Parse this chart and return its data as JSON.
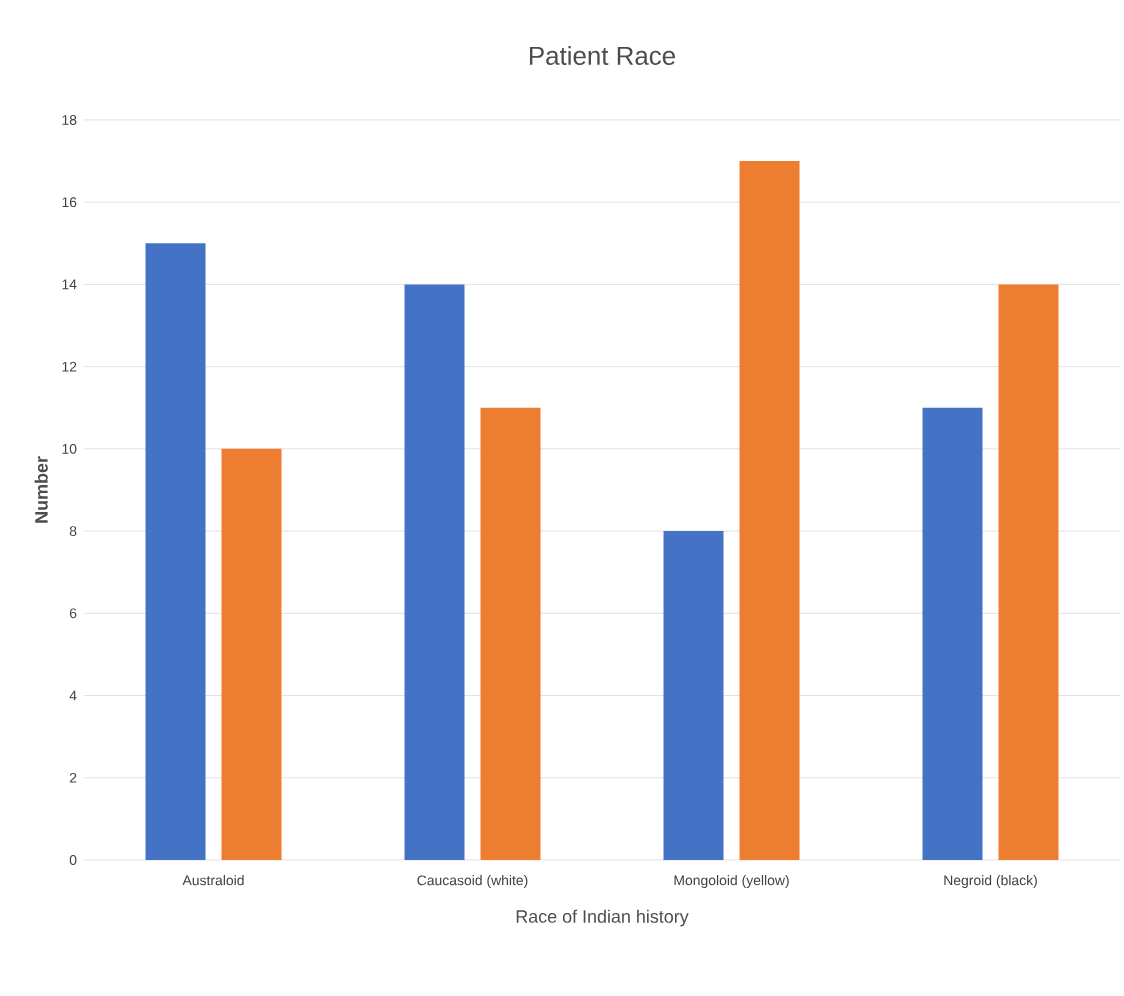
{
  "chart_data": {
    "type": "bar",
    "title": "Patient Race",
    "xlabel": "Race of Indian history",
    "ylabel": "Number",
    "categories": [
      "Australoid",
      "Caucasoid (white)",
      "Mongoloid (yellow)",
      "Negroid (black)"
    ],
    "series": [
      {
        "color": "#4472c4",
        "values": [
          15,
          14,
          8,
          11
        ]
      },
      {
        "color": "#ed7d31",
        "values": [
          10,
          11,
          17,
          14
        ]
      }
    ],
    "ylim": [
      0,
      18
    ],
    "yticks": [
      0,
      2,
      4,
      6,
      8,
      10,
      12,
      14,
      16,
      18
    ],
    "grid": "y"
  }
}
